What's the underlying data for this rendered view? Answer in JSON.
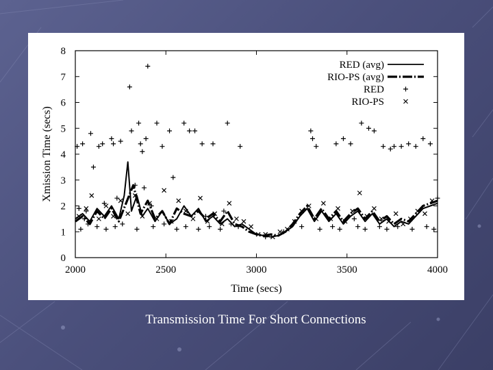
{
  "slide": {
    "caption": "Transmission Time For Short Connections",
    "background_color": "#4b507c"
  },
  "chart_data": {
    "type": "line",
    "xlabel": "Time (secs)",
    "ylabel": "Xmission Time (secs)",
    "xlim": [
      2000,
      4000
    ],
    "ylim": [
      0,
      8
    ],
    "x_ticks": [
      2000,
      2500,
      3000,
      3500,
      4000
    ],
    "y_ticks": [
      0,
      1,
      2,
      3,
      4,
      5,
      6,
      7,
      8
    ],
    "grid": false,
    "legend_position": "top-right",
    "legend": [
      "RED (avg)",
      "RIO-PS (avg)",
      "RED",
      "RIO-PS"
    ],
    "series": [
      {
        "name": "RED (avg)",
        "style": "solid",
        "x": [
          2000,
          2040,
          2080,
          2120,
          2160,
          2200,
          2240,
          2270,
          2290,
          2310,
          2340,
          2370,
          2400,
          2440,
          2480,
          2520,
          2560,
          2600,
          2640,
          2680,
          2720,
          2760,
          2800,
          2840,
          2880,
          2920,
          2960,
          3000,
          3040,
          3080,
          3120,
          3160,
          3200,
          3240,
          3280,
          3320,
          3360,
          3400,
          3440,
          3480,
          3520,
          3560,
          3600,
          3640,
          3680,
          3720,
          3760,
          3800,
          3840,
          3880,
          3920,
          3960,
          4000
        ],
        "y": [
          1.5,
          1.7,
          1.4,
          1.9,
          1.6,
          2.0,
          1.5,
          2.4,
          3.7,
          1.8,
          2.4,
          1.6,
          1.9,
          1.4,
          1.8,
          1.3,
          1.5,
          2.0,
          1.6,
          1.9,
          1.4,
          1.6,
          1.3,
          1.5,
          1.2,
          1.3,
          1.1,
          0.9,
          0.85,
          0.8,
          0.85,
          1.0,
          1.2,
          1.6,
          1.9,
          1.4,
          1.8,
          1.4,
          1.7,
          1.3,
          1.6,
          1.8,
          1.4,
          1.7,
          1.3,
          1.5,
          1.2,
          1.4,
          1.3,
          1.6,
          1.9,
          2.0,
          2.1
        ]
      },
      {
        "name": "RIO-PS (avg)",
        "style": "dashed",
        "x": [
          2000,
          2040,
          2080,
          2120,
          2160,
          2200,
          2240,
          2280,
          2320,
          2360,
          2400,
          2440,
          2480,
          2520,
          2560,
          2600,
          2640,
          2680,
          2720,
          2760,
          2800,
          2840,
          2880,
          2920,
          2960,
          3000,
          3040,
          3080,
          3120,
          3160,
          3200,
          3240,
          3280,
          3320,
          3360,
          3400,
          3440,
          3480,
          3520,
          3560,
          3600,
          3640,
          3680,
          3720,
          3760,
          3800,
          3840,
          3880,
          3920,
          3960,
          4000
        ],
        "y": [
          1.4,
          1.6,
          1.3,
          1.8,
          1.5,
          1.9,
          1.4,
          2.1,
          2.8,
          1.7,
          2.2,
          1.5,
          1.8,
          1.3,
          1.9,
          1.7,
          1.6,
          1.8,
          1.5,
          1.7,
          1.4,
          1.8,
          1.3,
          1.2,
          1.0,
          0.9,
          0.85,
          0.9,
          0.85,
          1.0,
          1.3,
          1.7,
          2.0,
          1.5,
          1.9,
          1.5,
          1.8,
          1.4,
          1.7,
          1.9,
          1.5,
          1.8,
          1.4,
          1.6,
          1.3,
          1.5,
          1.4,
          1.7,
          2.0,
          2.1,
          2.2
        ]
      },
      {
        "name": "RED",
        "style": "plus",
        "x": [
          2010,
          2020,
          2040,
          2050,
          2060,
          2085,
          2100,
          2130,
          2150,
          2160,
          2200,
          2210,
          2230,
          2250,
          2300,
          2310,
          2330,
          2350,
          2360,
          2370,
          2380,
          2390,
          2400,
          2420,
          2450,
          2480,
          2520,
          2540,
          2600,
          2630,
          2660,
          2700,
          2720,
          2760,
          2820,
          2840,
          2910,
          3300,
          3310,
          3330,
          3440,
          3480,
          3520,
          3540,
          3580,
          3620,
          3650,
          3700,
          3740,
          3760,
          3800,
          3840,
          3880,
          3920,
          3960,
          4000,
          2030,
          2070,
          2120,
          2170,
          2220,
          2260,
          2340,
          2430,
          2490,
          2560,
          2610,
          2680,
          2740,
          2800,
          2860,
          2900,
          3050,
          3150,
          3250,
          3350,
          3420,
          3460,
          3560,
          3600,
          3680,
          3720,
          3780,
          3860,
          3940,
          3980
        ],
        "y": [
          4.3,
          1.9,
          4.4,
          1.5,
          1.8,
          4.8,
          3.5,
          4.3,
          4.4,
          2.1,
          4.6,
          4.4,
          2.3,
          4.5,
          6.6,
          4.9,
          2.8,
          5.2,
          4.4,
          4.1,
          2.7,
          4.6,
          7.4,
          2.0,
          5.2,
          4.3,
          4.9,
          3.1,
          5.2,
          4.9,
          4.9,
          4.4,
          1.6,
          4.4,
          1.8,
          5.2,
          4.3,
          4.9,
          4.6,
          4.3,
          4.4,
          4.6,
          4.4,
          1.5,
          5.2,
          5.0,
          4.9,
          4.3,
          4.2,
          4.3,
          4.3,
          4.4,
          4.3,
          4.6,
          4.4,
          2.3,
          1.1,
          1.3,
          1.2,
          1.1,
          1.2,
          1.3,
          1.1,
          1.2,
          1.3,
          1.1,
          1.2,
          1.1,
          1.2,
          1.1,
          1.3,
          1.2,
          0.8,
          1.0,
          1.2,
          1.1,
          1.2,
          1.1,
          1.2,
          1.1,
          1.2,
          1.1,
          1.2,
          1.1,
          1.2,
          1.1
        ]
      },
      {
        "name": "RIO-PS",
        "style": "cross",
        "x": [
          2020,
          2060,
          2090,
          2130,
          2170,
          2210,
          2250,
          2290,
          2330,
          2370,
          2410,
          2450,
          2490,
          2530,
          2570,
          2610,
          2650,
          2690,
          2730,
          2770,
          2810,
          2850,
          2890,
          2930,
          2970,
          3010,
          3050,
          3090,
          3130,
          3170,
          3210,
          3250,
          3290,
          3330,
          3370,
          3410,
          3450,
          3490,
          3530,
          3570,
          3610,
          3650,
          3690,
          3730,
          3770,
          3810,
          3850,
          3890,
          3930,
          3970
        ],
        "y": [
          1.6,
          1.9,
          2.4,
          1.5,
          2.0,
          1.6,
          2.2,
          1.7,
          2.4,
          1.6,
          2.1,
          1.5,
          2.6,
          1.4,
          2.2,
          1.8,
          1.5,
          2.3,
          1.4,
          1.7,
          1.3,
          2.1,
          1.5,
          1.4,
          1.2,
          0.9,
          0.9,
          0.8,
          1.0,
          1.1,
          1.4,
          1.8,
          2.0,
          1.5,
          2.1,
          1.5,
          1.9,
          1.4,
          1.8,
          2.5,
          1.6,
          1.9,
          1.5,
          1.4,
          1.7,
          1.3,
          1.5,
          1.8,
          1.7,
          2.2
        ]
      }
    ]
  }
}
